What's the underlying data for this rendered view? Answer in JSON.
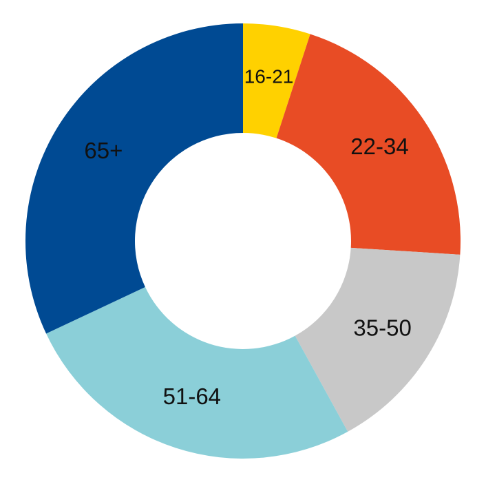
{
  "chart_data": {
    "type": "donut",
    "categories": [
      "16-21",
      "22-34",
      "35-50",
      "51-64",
      "65+"
    ],
    "values": [
      5,
      21,
      16,
      26,
      32
    ],
    "colors": [
      "#FFD100",
      "#E84C25",
      "#C8C8C8",
      "#8BCFD8",
      "#004A93"
    ]
  }
}
